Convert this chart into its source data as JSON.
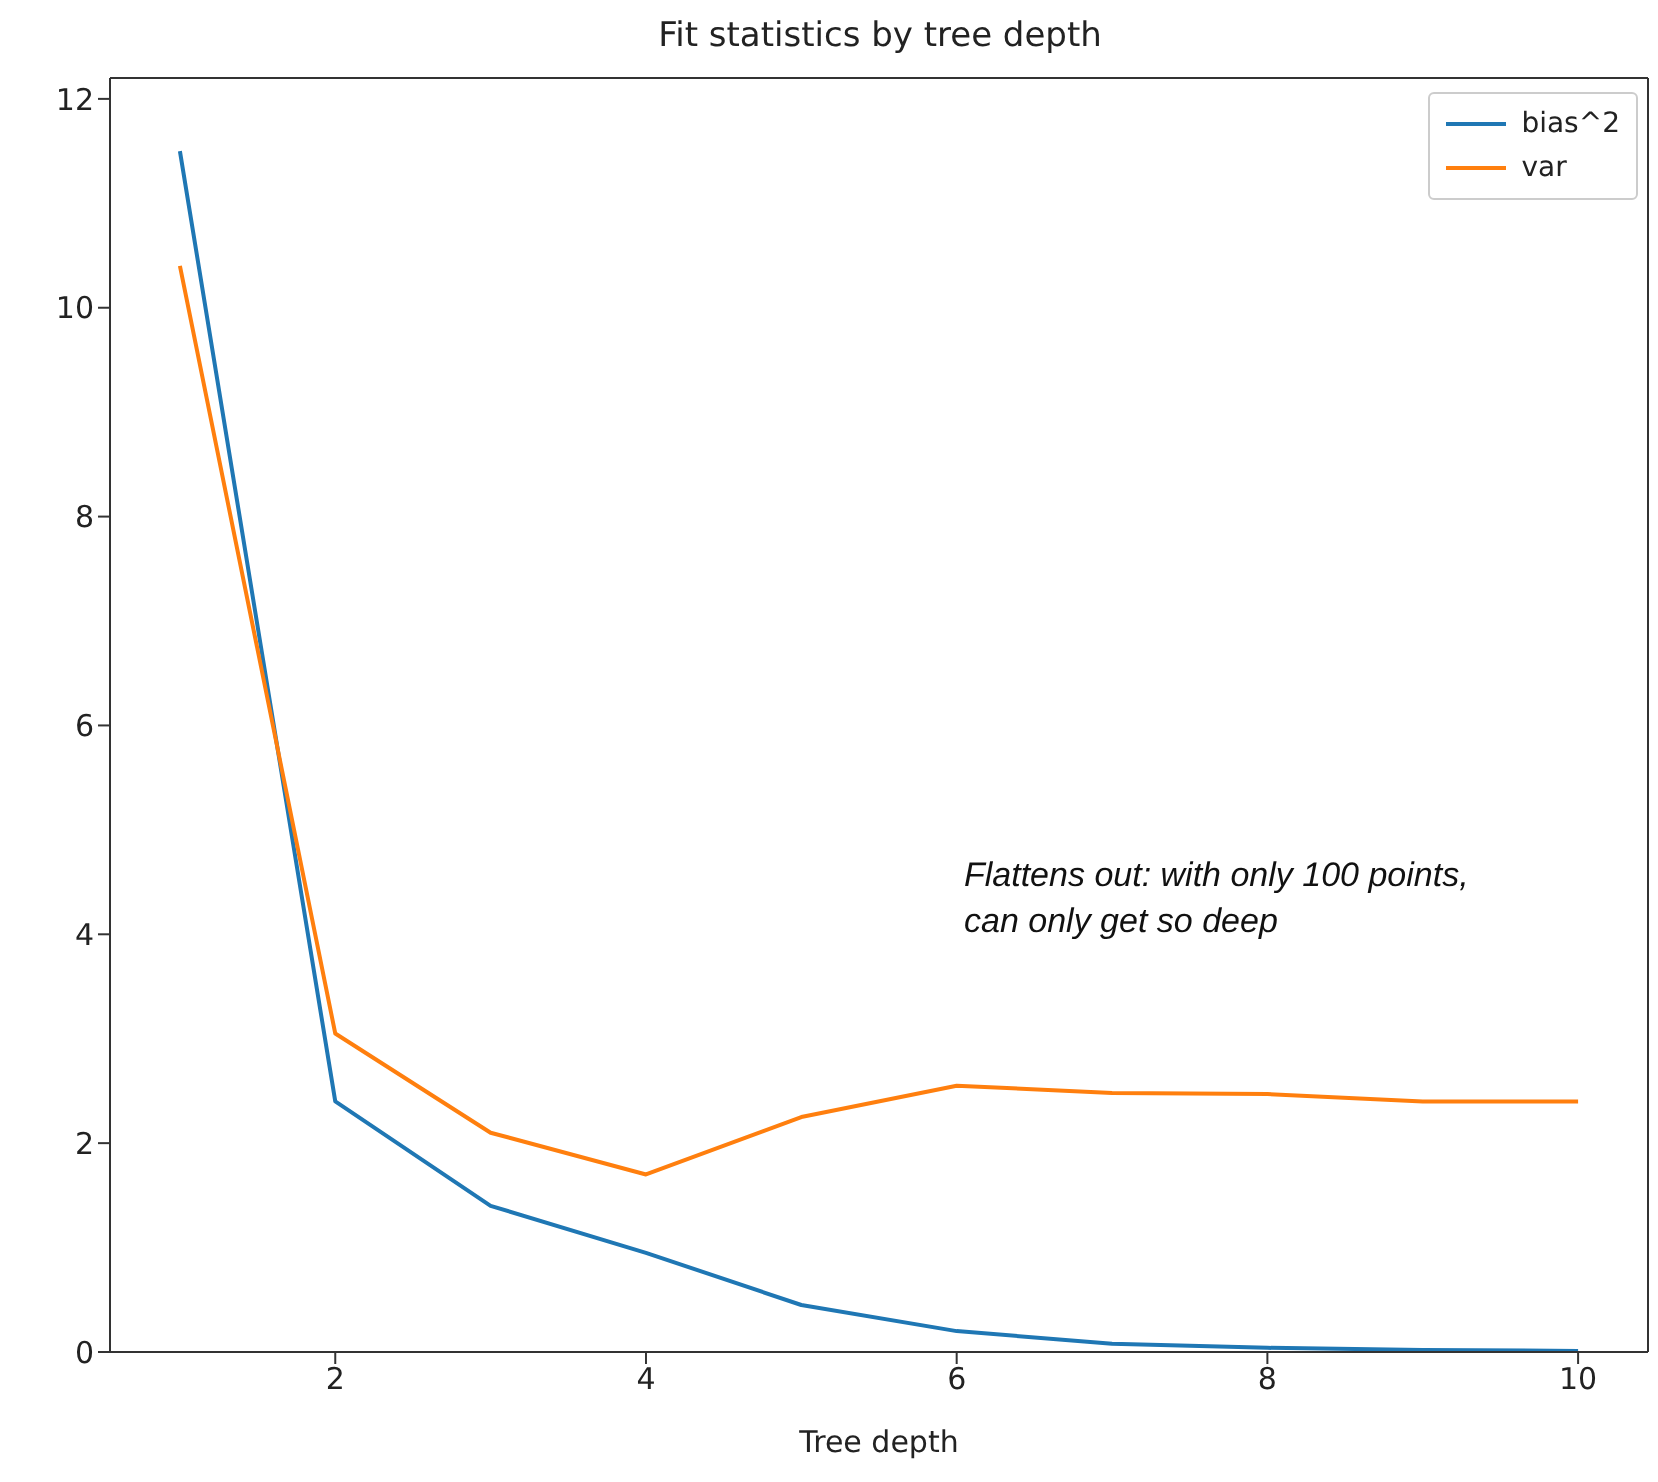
{
  "chart_data": {
    "type": "line",
    "title": "Fit statistics by tree depth",
    "xlabel": "Tree depth",
    "x": [
      1,
      2,
      3,
      4,
      5,
      6,
      7,
      8,
      9,
      10
    ],
    "series": [
      {
        "name": "bias^2",
        "color": "#1f77b4",
        "values": [
          11.5,
          2.4,
          1.4,
          0.95,
          0.45,
          0.2,
          0.08,
          0.04,
          0.02,
          0.01
        ]
      },
      {
        "name": "var",
        "color": "#ff7f0e",
        "values": [
          10.4,
          3.05,
          2.1,
          1.7,
          2.25,
          2.55,
          2.48,
          2.47,
          2.4,
          2.4
        ]
      }
    ],
    "xlim": [
      0.55,
      10.45
    ],
    "xticks": [
      2,
      4,
      6,
      8,
      10
    ],
    "ylim": [
      0,
      12.2
    ],
    "yticks": [
      0,
      2,
      4,
      6,
      8,
      10,
      12
    ],
    "annotations": [
      "Flattens out: with only 100 points, can only get so deep"
    ],
    "legend": "top right",
    "grid": false,
    "marker": "none",
    "line_style": "solid"
  }
}
